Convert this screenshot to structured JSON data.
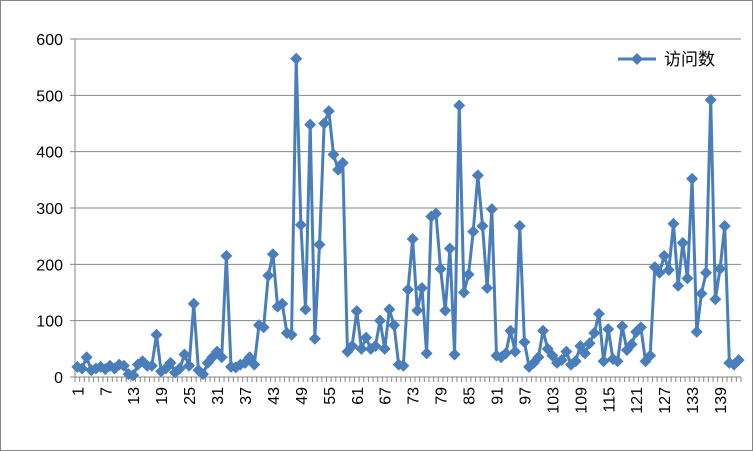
{
  "chart_data": {
    "type": "line",
    "title": "",
    "xlabel": "",
    "ylabel": "",
    "ylim": [
      0,
      600
    ],
    "yticks": [
      "0",
      "100",
      "200",
      "300",
      "400",
      "500",
      "600"
    ],
    "x_tick_labels": [
      "1",
      "7",
      "13",
      "19",
      "25",
      "31",
      "37",
      "43",
      "49",
      "55",
      "61",
      "67",
      "73",
      "79",
      "85",
      "91",
      "97",
      "103",
      "109",
      "115",
      "121",
      "127",
      "133",
      "139"
    ],
    "grid": "horizontal",
    "legend_position": "top-right",
    "series_color": "#4a7ebb",
    "series": [
      {
        "name": "访问数",
        "values": [
          18,
          15,
          35,
          12,
          15,
          18,
          14,
          20,
          15,
          22,
          20,
          5,
          3,
          22,
          28,
          20,
          20,
          75,
          10,
          15,
          25,
          8,
          15,
          40,
          20,
          130,
          12,
          5,
          25,
          35,
          45,
          35,
          215,
          18,
          17,
          22,
          25,
          35,
          22,
          92,
          88,
          180,
          218,
          125,
          130,
          78,
          75,
          565,
          270,
          120,
          448,
          68,
          235,
          450,
          472,
          395,
          368,
          380,
          45,
          55,
          117,
          50,
          70,
          50,
          55,
          100,
          50,
          120,
          92,
          22,
          20,
          155,
          245,
          118,
          158,
          42,
          285,
          290,
          192,
          118,
          228,
          40,
          482,
          150,
          182,
          258,
          358,
          268,
          158,
          298,
          38,
          35,
          42,
          82,
          45,
          268,
          62,
          18,
          25,
          35,
          82,
          50,
          38,
          25,
          30,
          45,
          22,
          28,
          55,
          42,
          60,
          78,
          112,
          28,
          85,
          32,
          28,
          90,
          48,
          58,
          80,
          88,
          28,
          38,
          195,
          185,
          215,
          190,
          272,
          162,
          238,
          175,
          352,
          80,
          148,
          185,
          492,
          138,
          192,
          268,
          25,
          22,
          30
        ]
      }
    ]
  }
}
